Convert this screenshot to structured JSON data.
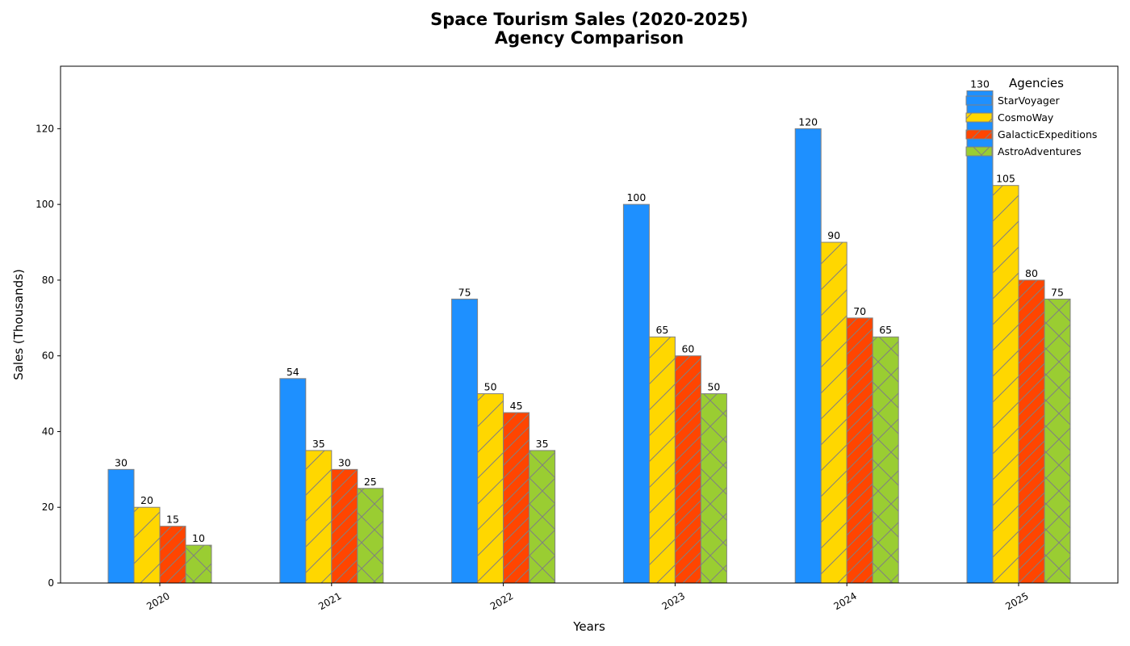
{
  "chart_data": {
    "type": "bar",
    "title_line1": "Space Tourism Sales (2020-2025)",
    "title_line2": "Agency Comparison",
    "xlabel": "Years",
    "ylabel": "Sales (Thousands)",
    "categories": [
      "2020",
      "2021",
      "2022",
      "2023",
      "2024",
      "2025"
    ],
    "ylim": [
      0,
      136.5
    ],
    "yticks": [
      0,
      20,
      40,
      60,
      80,
      100,
      120
    ],
    "grid": false,
    "legend": {
      "title": "Agencies",
      "placement": "top-right"
    },
    "series": [
      {
        "name": "StarVoyager",
        "values": [
          30,
          54,
          75,
          100,
          120,
          130
        ],
        "color": "#1E90FF",
        "hatch": "none"
      },
      {
        "name": "CosmoWay",
        "values": [
          20,
          35,
          50,
          65,
          90,
          105
        ],
        "color": "#FFD700",
        "hatch": "forward-diagonal"
      },
      {
        "name": "GalacticExpeditions",
        "values": [
          15,
          30,
          45,
          60,
          70,
          80
        ],
        "color": "#FF4500",
        "hatch": "dense-forward-diagonal"
      },
      {
        "name": "AstroAdventures",
        "values": [
          10,
          25,
          35,
          50,
          65,
          75
        ],
        "color": "#9ACD32",
        "hatch": "cross"
      }
    ],
    "edge_color": "#808080"
  }
}
